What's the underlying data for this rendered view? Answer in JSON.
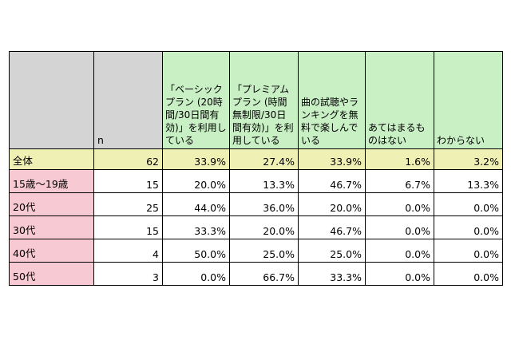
{
  "header": {
    "n_label": "n",
    "columns": [
      "「ベーシックプラン (20時間/30日間有効)」を利用している",
      "「プレミアムプラン (時間無制限/30日間有効)」を利用している",
      "曲の試聴やランキングを無料で楽しんでいる",
      "あてはまるものはない",
      "わからない"
    ]
  },
  "rows": [
    {
      "label": "全体",
      "n": "62",
      "values": [
        "33.9%",
        "27.4%",
        "33.9%",
        "1.6%",
        "3.2%"
      ]
    },
    {
      "label": "15歳～19歳",
      "n": "15",
      "values": [
        "20.0%",
        "13.3%",
        "46.7%",
        "6.7%",
        "13.3%"
      ]
    },
    {
      "label": "20代",
      "n": "25",
      "values": [
        "44.0%",
        "36.0%",
        "20.0%",
        "0.0%",
        "0.0%"
      ]
    },
    {
      "label": "30代",
      "n": "15",
      "values": [
        "33.3%",
        "20.0%",
        "46.7%",
        "0.0%",
        "0.0%"
      ]
    },
    {
      "label": "40代",
      "n": "4",
      "values": [
        "50.0%",
        "25.0%",
        "25.0%",
        "0.0%",
        "0.0%"
      ]
    },
    {
      "label": "50代",
      "n": "3",
      "values": [
        "0.0%",
        "66.7%",
        "33.3%",
        "0.0%",
        "0.0%"
      ]
    }
  ]
}
